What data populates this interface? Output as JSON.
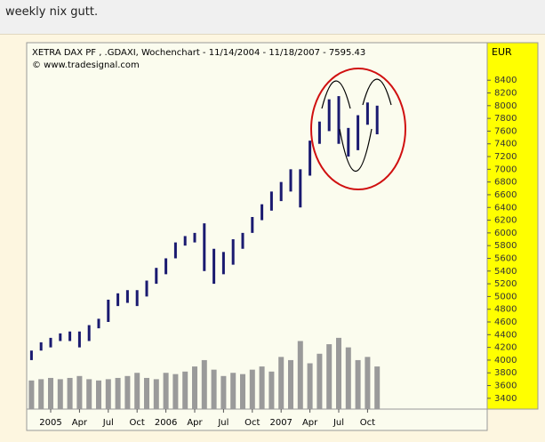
{
  "post_text": "weekly nix gutt.",
  "chart_data": {
    "type": "range",
    "title": "XETRA DAX PF    , .GDAXI, Wochenchart - 11/14/2004 - 11/18/2007 - 7595.43",
    "subtitle": "© www.tradesignal.com",
    "y_label": "EUR",
    "categories": [
      null,
      null,
      "2005",
      null,
      null,
      "Apr",
      null,
      null,
      "Jul",
      null,
      null,
      "Oct",
      null,
      null,
      "2006",
      null,
      null,
      "Apr",
      null,
      null,
      "Jul",
      null,
      null,
      "Oct",
      null,
      null,
      "2007",
      null,
      null,
      "Apr",
      null,
      null,
      "Jul",
      null,
      null,
      "Oct",
      null
    ],
    "high": [
      4150,
      4280,
      4350,
      4420,
      4450,
      4450,
      4550,
      4650,
      4950,
      5050,
      5100,
      5100,
      5250,
      5450,
      5600,
      5850,
      5950,
      6000,
      6150,
      5750,
      5700,
      5900,
      6000,
      6250,
      6450,
      6650,
      6800,
      7000,
      7000,
      7450,
      7750,
      8100,
      8150,
      7650,
      7850,
      8050,
      8000
    ],
    "low": [
      4000,
      4150,
      4200,
      4300,
      4300,
      4200,
      4300,
      4500,
      4600,
      4850,
      4900,
      4850,
      5000,
      5200,
      5350,
      5600,
      5800,
      5850,
      5400,
      5200,
      5350,
      5500,
      5750,
      6000,
      6200,
      6350,
      6500,
      6650,
      6400,
      6900,
      7400,
      7600,
      7400,
      7200,
      7300,
      7700,
      7550
    ],
    "volume": [
      3680,
      3700,
      3720,
      3700,
      3720,
      3750,
      3700,
      3680,
      3700,
      3720,
      3750,
      3800,
      3720,
      3700,
      3800,
      3780,
      3820,
      3900,
      4000,
      3850,
      3750,
      3800,
      3780,
      3850,
      3900,
      3820,
      4050,
      4000,
      4300,
      3950,
      4100,
      4250,
      4350,
      4200,
      4000,
      4050,
      3900
    ],
    "color": "#1a1a70",
    "volume_color": "#9a9a9a",
    "ylim": [
      3230,
      8990
    ],
    "yticks": [
      3400,
      3600,
      3800,
      4000,
      4200,
      4400,
      4600,
      4800,
      5000,
      5200,
      5400,
      5600,
      5800,
      6000,
      6200,
      6400,
      6600,
      6800,
      7000,
      7200,
      7400,
      7600,
      7800,
      8000,
      8200,
      8400
    ]
  }
}
